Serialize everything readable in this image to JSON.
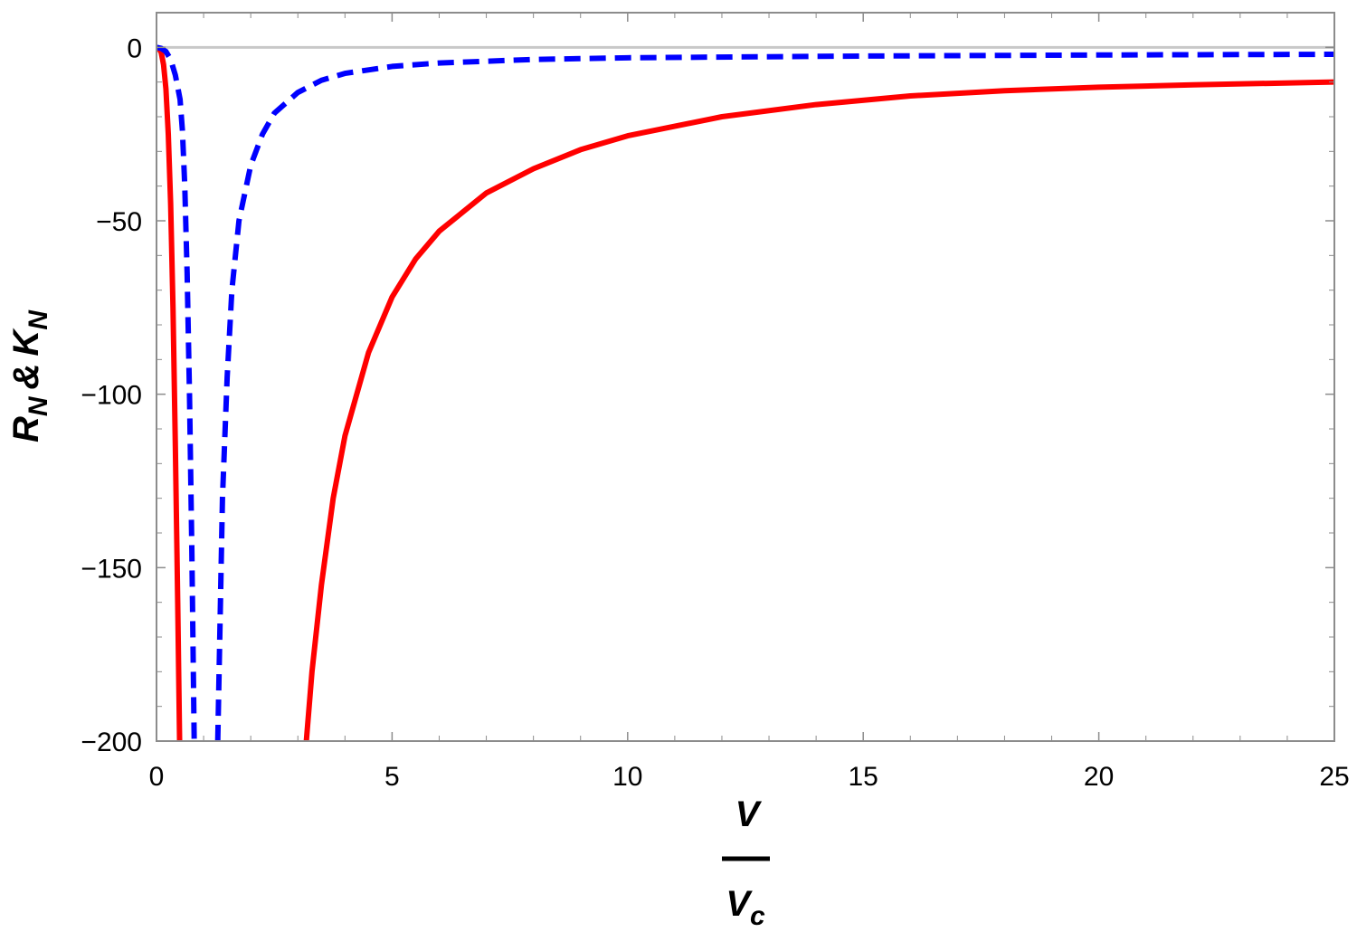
{
  "chart_data": {
    "type": "line",
    "title": "",
    "xlabel": {
      "numerator": "V",
      "denominator_base": "V",
      "denominator_sub": "c"
    },
    "ylabel": {
      "r": "R",
      "r_sub": "N",
      "amp": "&",
      "k": "K",
      "k_sub": "N"
    },
    "xlim": [
      0,
      25
    ],
    "ylim": [
      -200,
      10
    ],
    "x_ticks": [
      0,
      5,
      10,
      15,
      20,
      25
    ],
    "x_tick_labels": [
      "0",
      "5",
      "10",
      "15",
      "20",
      "25"
    ],
    "y_ticks": [
      0,
      -50,
      -100,
      -150,
      -200
    ],
    "y_tick_labels": [
      "0",
      "−50",
      "−100",
      "−150",
      "−200"
    ],
    "grid": false,
    "legend": "none",
    "reference_line": {
      "y": 0,
      "color": "#c8c8c8"
    },
    "series": [
      {
        "color": "#ff0000",
        "style": "solid",
        "points": [
          [
            0,
            0
          ],
          [
            0.05,
            -0.3
          ],
          [
            0.1,
            -1.5
          ],
          [
            0.15,
            -5
          ],
          [
            0.2,
            -12
          ],
          [
            0.25,
            -25
          ],
          [
            0.3,
            -45
          ],
          [
            0.35,
            -75
          ],
          [
            0.4,
            -115
          ],
          [
            0.45,
            -160
          ],
          [
            0.49,
            -200
          ],
          null,
          [
            3.18,
            -200
          ],
          [
            3.3,
            -180
          ],
          [
            3.5,
            -155
          ],
          [
            3.75,
            -130
          ],
          [
            4,
            -112
          ],
          [
            4.5,
            -88
          ],
          [
            5,
            -72
          ],
          [
            5.5,
            -61
          ],
          [
            6,
            -53
          ],
          [
            7,
            -42
          ],
          [
            8,
            -35
          ],
          [
            9,
            -29.5
          ],
          [
            10,
            -25.5
          ],
          [
            12,
            -20
          ],
          [
            14,
            -16.5
          ],
          [
            16,
            -14
          ],
          [
            18,
            -12.5
          ],
          [
            20,
            -11.5
          ],
          [
            22,
            -10.8
          ],
          [
            25,
            -10
          ]
        ]
      },
      {
        "color": "#0000ff",
        "style": "dashed",
        "points": [
          [
            0,
            0
          ],
          [
            0.1,
            -0.3
          ],
          [
            0.2,
            -1.2
          ],
          [
            0.3,
            -3.5
          ],
          [
            0.4,
            -8
          ],
          [
            0.5,
            -15
          ],
          [
            0.55,
            -24
          ],
          [
            0.6,
            -40
          ],
          [
            0.65,
            -65
          ],
          [
            0.7,
            -100
          ],
          [
            0.75,
            -145
          ],
          [
            0.8,
            -200
          ],
          null,
          [
            1.3,
            -200
          ],
          [
            1.35,
            -165
          ],
          [
            1.4,
            -130
          ],
          [
            1.5,
            -95
          ],
          [
            1.6,
            -70
          ],
          [
            1.75,
            -50
          ],
          [
            2,
            -34
          ],
          [
            2.25,
            -25
          ],
          [
            2.5,
            -19
          ],
          [
            3,
            -13
          ],
          [
            3.5,
            -9.5
          ],
          [
            4,
            -7.5
          ],
          [
            5,
            -5.5
          ],
          [
            6,
            -4.5
          ],
          [
            8,
            -3.5
          ],
          [
            10,
            -3
          ],
          [
            15,
            -2.5
          ],
          [
            20,
            -2.2
          ],
          [
            25,
            -2
          ]
        ]
      }
    ]
  }
}
